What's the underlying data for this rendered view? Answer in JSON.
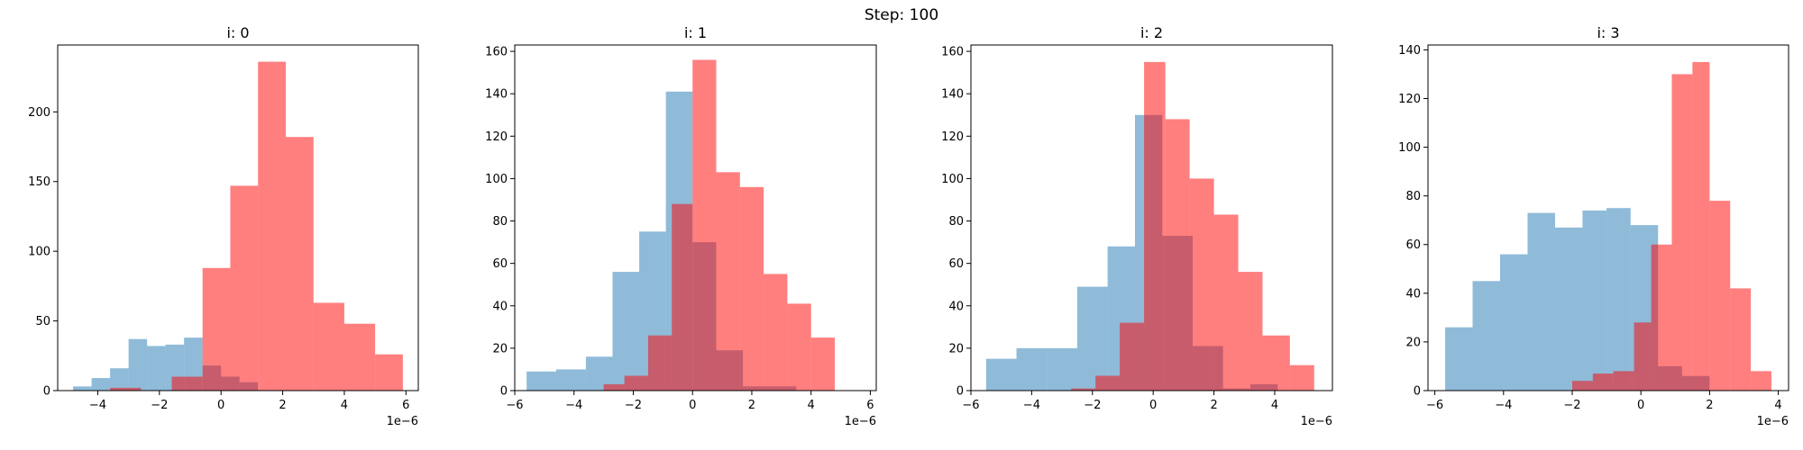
{
  "suptitle": "Step: 100",
  "colors": {
    "blue": "#1f77b4",
    "red": "#ff0000"
  },
  "chart_data": [
    {
      "type": "bar",
      "title": "i: 0",
      "x_offset_label": "1e−6",
      "xlim": [
        -5.3,
        6.4
      ],
      "ylim": [
        0,
        248
      ],
      "xticks": [
        -4,
        -2,
        0,
        2,
        4,
        6
      ],
      "yticks": [
        0,
        50,
        100,
        150,
        200
      ],
      "series": [
        {
          "name": "",
          "color": "#1f77b4",
          "edges": [
            -4.8,
            -4.2,
            -3.6,
            -3.0,
            -2.4,
            -1.8,
            -1.2,
            -0.6,
            0.0,
            0.6,
            1.2
          ],
          "counts": [
            3,
            9,
            16,
            37,
            32,
            33,
            38,
            18,
            10,
            6
          ]
        },
        {
          "name": "",
          "color": "#ff0000",
          "edges": [
            -3.6,
            -2.6,
            -1.6,
            -0.6,
            0.3,
            1.2,
            2.1,
            3.0,
            4.0,
            5.0,
            5.9
          ],
          "counts": [
            2,
            0,
            10,
            88,
            147,
            236,
            182,
            63,
            48,
            26
          ]
        }
      ]
    },
    {
      "type": "bar",
      "title": "i: 1",
      "x_offset_label": "1e−6",
      "xlim": [
        -6.0,
        6.2
      ],
      "ylim": [
        0,
        163
      ],
      "xticks": [
        -6,
        -4,
        -2,
        0,
        2,
        4,
        6
      ],
      "yticks": [
        0,
        20,
        40,
        60,
        80,
        100,
        120,
        140,
        160
      ],
      "series": [
        {
          "name": "",
          "color": "#1f77b4",
          "edges": [
            -5.6,
            -4.6,
            -3.6,
            -2.7,
            -1.8,
            -0.9,
            0.0,
            0.8,
            1.7,
            2.6,
            3.5
          ],
          "counts": [
            9,
            10,
            16,
            56,
            75,
            141,
            70,
            19,
            2,
            2
          ]
        },
        {
          "name": "",
          "color": "#ff0000",
          "edges": [
            -3.0,
            -2.3,
            -1.5,
            -0.7,
            -0.0,
            0.8,
            1.6,
            2.4,
            3.2,
            4.0,
            4.8,
            5.7
          ],
          "counts": [
            3,
            7,
            26,
            88,
            156,
            103,
            96,
            55,
            41,
            25,
            0
          ]
        }
      ]
    },
    {
      "type": "bar",
      "title": "i: 2",
      "x_offset_label": "1e−6",
      "xlim": [
        -6.0,
        5.9
      ],
      "ylim": [
        0,
        163
      ],
      "xticks": [
        -6,
        -4,
        -2,
        0,
        2,
        4
      ],
      "yticks": [
        0,
        20,
        40,
        60,
        80,
        100,
        120,
        140,
        160
      ],
      "series": [
        {
          "name": "",
          "color": "#1f77b4",
          "edges": [
            -5.5,
            -4.5,
            -3.5,
            -2.5,
            -1.5,
            -0.6,
            0.3,
            1.3,
            2.3,
            3.2,
            4.1
          ],
          "counts": [
            15,
            20,
            20,
            49,
            68,
            130,
            73,
            21,
            1,
            3
          ]
        },
        {
          "name": "",
          "color": "#ff0000",
          "edges": [
            -2.7,
            -1.9,
            -1.1,
            -0.3,
            0.4,
            1.2,
            2.0,
            2.8,
            3.6,
            4.5,
            5.3
          ],
          "counts": [
            1,
            7,
            32,
            155,
            128,
            100,
            83,
            56,
            26,
            12
          ]
        }
      ]
    },
    {
      "type": "bar",
      "title": "i: 3",
      "x_offset_label": "1e−6",
      "xlim": [
        -6.2,
        4.3
      ],
      "ylim": [
        0,
        142
      ],
      "xticks": [
        -6,
        -4,
        -2,
        0,
        2,
        4
      ],
      "yticks": [
        0,
        20,
        40,
        60,
        80,
        100,
        120,
        140
      ],
      "series": [
        {
          "name": "",
          "color": "#1f77b4",
          "edges": [
            -5.7,
            -4.9,
            -4.1,
            -3.3,
            -2.5,
            -1.7,
            -1.0,
            -0.3,
            0.5,
            1.2,
            2.0
          ],
          "counts": [
            26,
            45,
            56,
            73,
            67,
            74,
            75,
            68,
            10,
            6
          ]
        },
        {
          "name": "",
          "color": "#ff0000",
          "edges": [
            -2.0,
            -1.4,
            -0.8,
            -0.2,
            0.3,
            0.9,
            1.5,
            2.0,
            2.6,
            3.2,
            3.8
          ],
          "counts": [
            4,
            7,
            8,
            28,
            60,
            130,
            135,
            78,
            42,
            8
          ]
        }
      ]
    }
  ]
}
